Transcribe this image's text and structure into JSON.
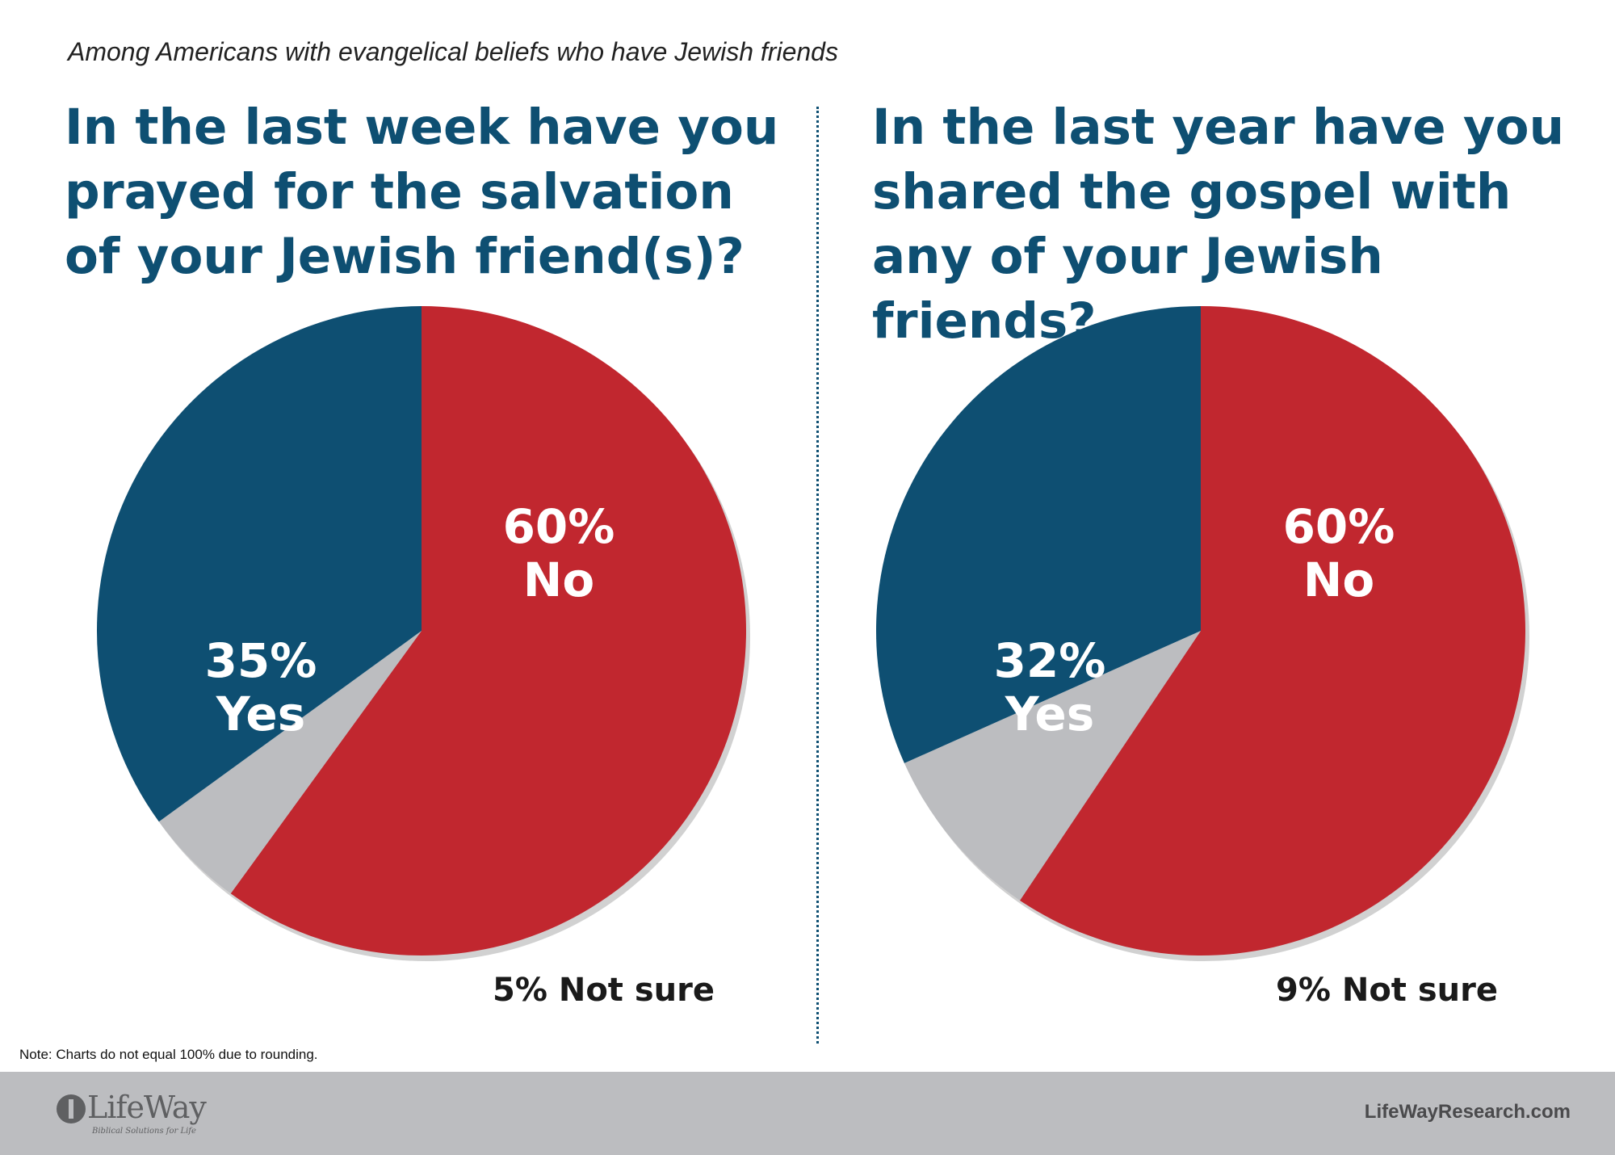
{
  "subtitle": "Among Americans with evangelical beliefs who have Jewish friends",
  "colors": {
    "no": "#c1272f",
    "yes": "#0e4f72",
    "not_sure": "#bcbdc0",
    "question": "#0e4f72",
    "footer": "#bcbdc0"
  },
  "chart_data": [
    {
      "type": "pie",
      "title": "In the last week have you prayed for the salvation of your Jewish friend(s)?",
      "categories": [
        "No",
        "Not sure",
        "Yes"
      ],
      "values": [
        60,
        5,
        35
      ],
      "labels": {
        "no_pct": "60%",
        "no": "No",
        "yes_pct": "35%",
        "yes": "Yes",
        "not_sure": "5% Not sure"
      }
    },
    {
      "type": "pie",
      "title": "In the last year have you shared the gospel with any of your Jewish friends?",
      "categories": [
        "No",
        "Not sure",
        "Yes"
      ],
      "values": [
        60,
        9,
        32
      ],
      "labels": {
        "no_pct": "60%",
        "no": "No",
        "yes_pct": "32%",
        "yes": "Yes",
        "not_sure": "9% Not sure"
      }
    }
  ],
  "note": "Note: Charts do not equal 100% due to rounding.",
  "footer": {
    "logo_text": "LifeWay",
    "logo_tagline": "Biblical Solutions for Life",
    "website": "LifeWayResearch.com"
  }
}
